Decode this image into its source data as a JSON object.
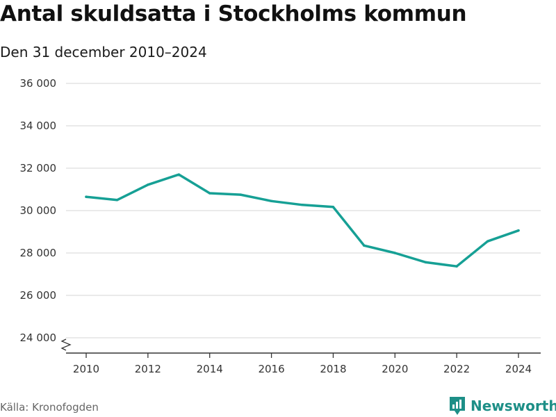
{
  "title": "Antal skuldsatta i Stockholms kommun",
  "subtitle": "Den 31 december 2010–2024",
  "source": "Källa: Kronofogden",
  "brand": {
    "name": "Newsworthy",
    "icon": "bar-chart-logo-icon"
  },
  "colors": {
    "line": "#16a095",
    "grid": "#dddddd",
    "axis": "#333333",
    "brand": "#1d8f87"
  },
  "chart_data": {
    "type": "line",
    "title": "Antal skuldsatta i Stockholms kommun",
    "subtitle": "Den 31 december 2010–2024",
    "xlabel": "",
    "ylabel": "",
    "x": [
      2010,
      2011,
      2012,
      2013,
      2014,
      2015,
      2016,
      2017,
      2018,
      2019,
      2020,
      2021,
      2022,
      2023,
      2024
    ],
    "series": [
      {
        "name": "Antal skuldsatta",
        "values": [
          30650,
          30500,
          31220,
          31700,
          30820,
          30750,
          30450,
          30270,
          30170,
          28350,
          28000,
          27560,
          27370,
          28550,
          29060
        ]
      }
    ],
    "ylim": [
      24000,
      36000
    ],
    "yticks": [
      24000,
      26000,
      28000,
      30000,
      32000,
      34000,
      36000
    ],
    "ytick_labels": [
      "24 000",
      "26 000",
      "28 000",
      "30 000",
      "32 000",
      "34 000",
      "36 000"
    ],
    "xticks": [
      2010,
      2012,
      2014,
      2016,
      2018,
      2020,
      2022,
      2024
    ],
    "xtick_labels": [
      "2010",
      "2012",
      "2014",
      "2016",
      "2018",
      "2020",
      "2022",
      "2024"
    ],
    "grid": true,
    "axis_break": true
  }
}
